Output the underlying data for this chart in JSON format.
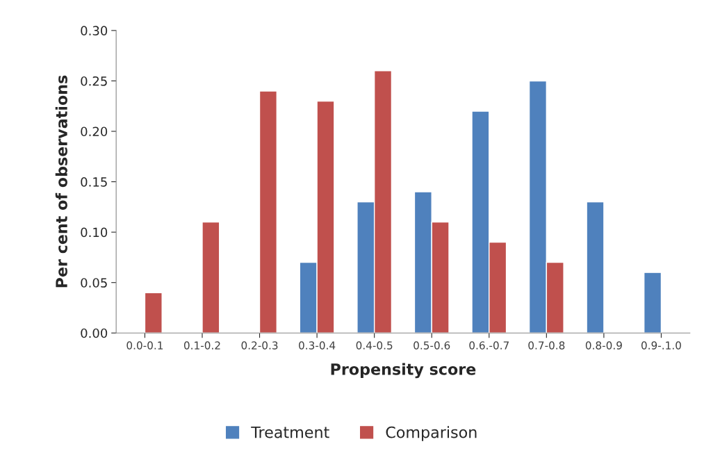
{
  "chart_data": {
    "type": "bar",
    "xlabel": "Propensity score",
    "ylabel": "Per cent of observations",
    "categories": [
      "0.0-0.1",
      "0.1-0.2",
      "0.2-0.3",
      "0.3-0.4",
      "0.4-0.5",
      "0.5-0.6",
      "0.6.-0.7",
      "0.7-0.8",
      "0.8-0.9",
      "0.9-.1.0"
    ],
    "series": [
      {
        "name": "Treatment",
        "color": "#4f81bd",
        "values": [
          null,
          null,
          null,
          0.07,
          0.13,
          0.14,
          0.22,
          0.25,
          0.13,
          0.06
        ]
      },
      {
        "name": "Comparison",
        "color": "#c0504d",
        "values": [
          0.04,
          0.11,
          0.24,
          0.23,
          0.26,
          0.11,
          0.09,
          0.07,
          null,
          null
        ]
      }
    ],
    "ylim": [
      0,
      0.3
    ],
    "yticks": [
      {
        "value": 0,
        "label": "0.00"
      },
      {
        "value": 0.05,
        "label": "0.05"
      },
      {
        "value": 0.1,
        "label": "0.10"
      },
      {
        "value": 0.15,
        "label": "0.15"
      },
      {
        "value": 0.2,
        "label": "0.20"
      },
      {
        "value": 0.25,
        "label": "0.25"
      },
      {
        "value": 0.3,
        "label": "0.30"
      }
    ],
    "grid": false,
    "legend": "bottom"
  }
}
